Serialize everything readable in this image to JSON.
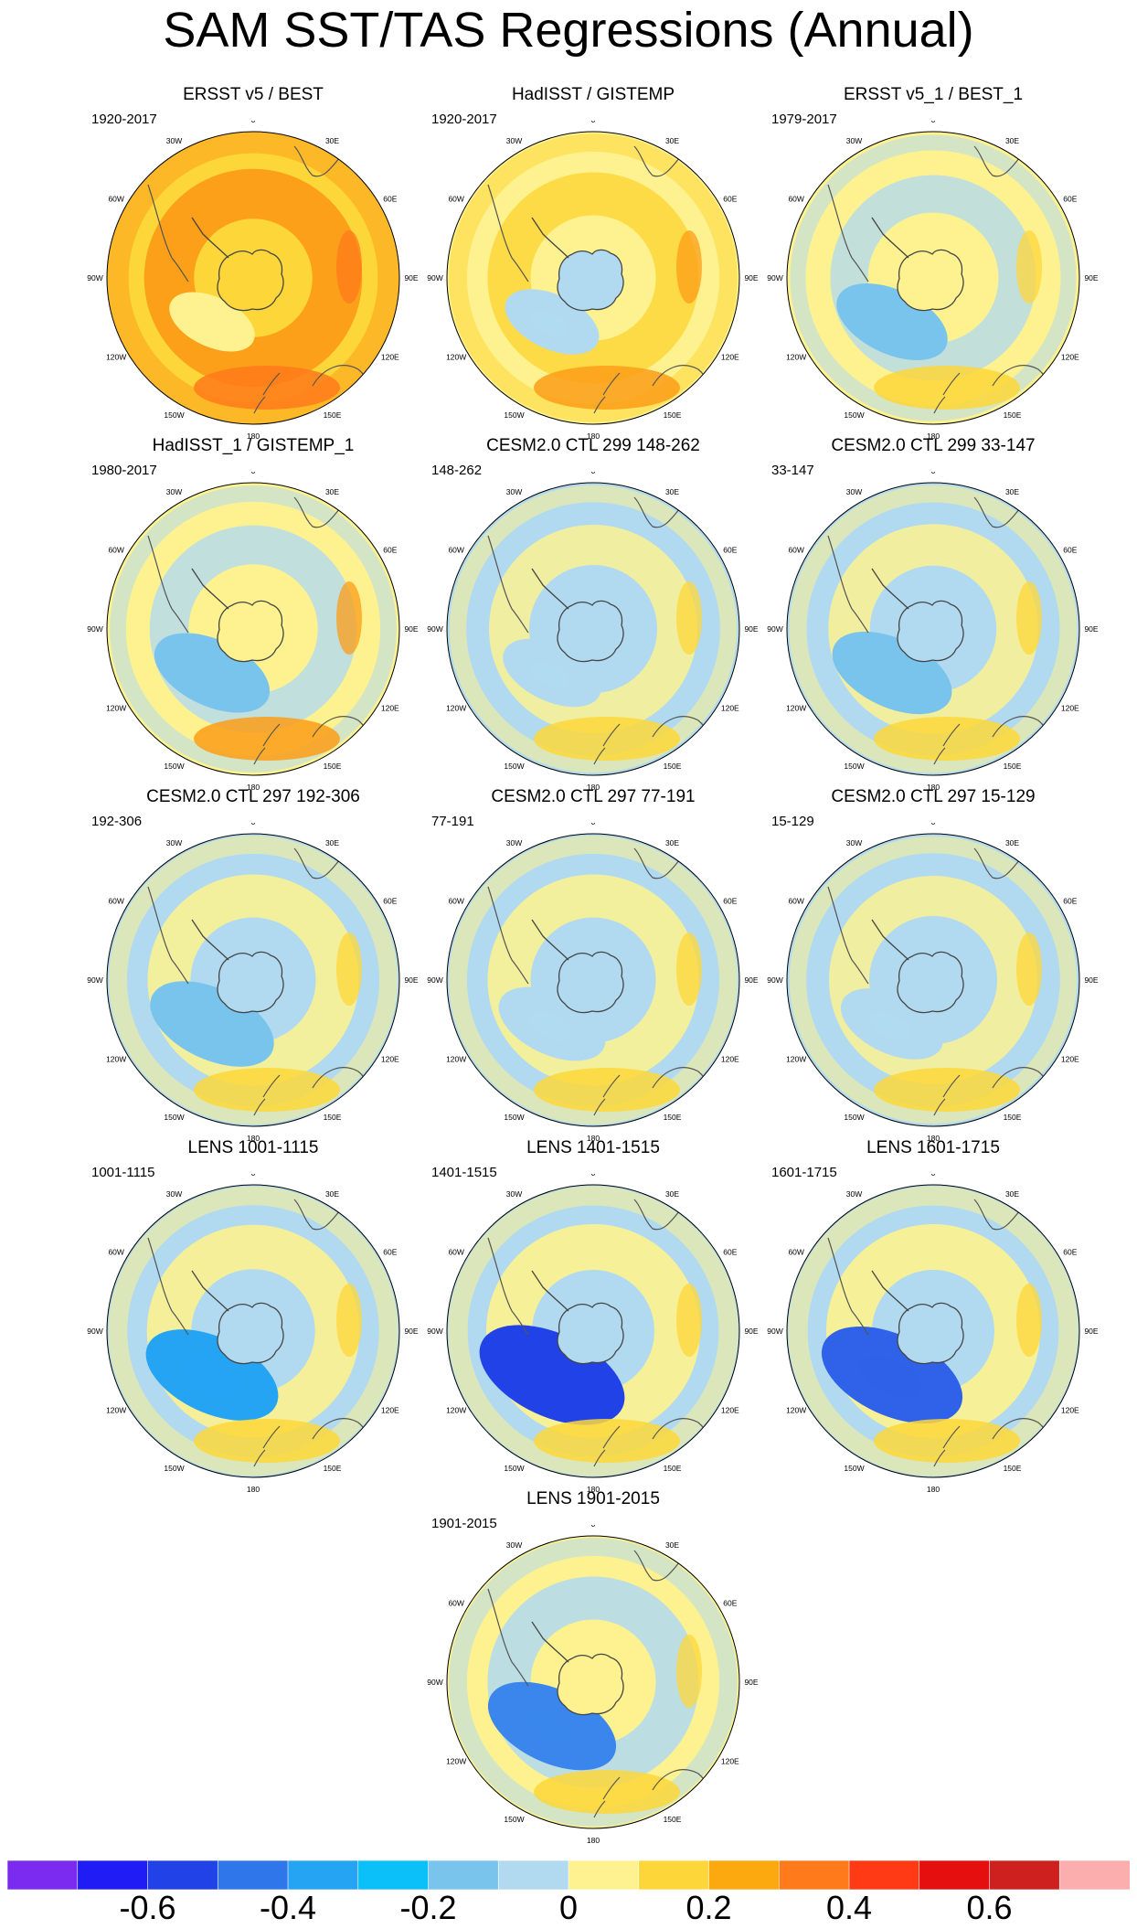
{
  "chart_data": {
    "title": "SAM SST/TAS Regressions (Annual)",
    "type": "polar-map-panels",
    "projection": "south polar stereographic",
    "longitude_labels": [
      "0",
      "30E",
      "60E",
      "90E",
      "120E",
      "150E",
      "180",
      "150W",
      "120W",
      "90W",
      "60W",
      "30W"
    ],
    "panels": [
      {
        "title": "ERSST v5 / BEST",
        "period": "1920-2017",
        "pattern": {
          "base": "#fdd73a",
          "ring": "#fb9e17",
          "ring_strength": 0.95,
          "cold_low": "#fdf28f",
          "warm_patch": "#ff7a1a",
          "dipole": 0.2
        }
      },
      {
        "title": "HadISST / GISTEMP",
        "period": "1920-2017",
        "pattern": {
          "base": "#fdf28f",
          "ring": "#fdd73a",
          "ring_strength": 0.7,
          "cold_low": "#b1daf0",
          "warm_patch": "#fb9e17",
          "dipole": 0.3
        }
      },
      {
        "title": "ERSST v5_1 / BEST_1",
        "period": "1979-2017",
        "pattern": {
          "base": "#fdf28f",
          "ring": "#b1daf0",
          "ring_strength": 0.5,
          "cold_low": "#78c4ec",
          "warm_patch": "#fdd73a",
          "dipole": 0.5
        }
      },
      {
        "title": "HadISST_1 / GISTEMP_1",
        "period": "1980-2017",
        "pattern": {
          "base": "#fdf28f",
          "ring": "#b1daf0",
          "ring_strength": 0.55,
          "cold_low": "#78c4ec",
          "warm_patch": "#fb9e17",
          "dipole": 0.55
        }
      },
      {
        "title": "CESM2.0 CTL 299 148-262",
        "period": "148-262",
        "pattern": {
          "base": "#b1daf0",
          "ring": "#fdf28f",
          "ring_strength": 0.6,
          "cold_low": "#b1daf0",
          "warm_patch": "#fdd73a",
          "dipole": 0.35
        }
      },
      {
        "title": "CESM2.0 CTL 299 33-147",
        "period": "33-147",
        "pattern": {
          "base": "#b1daf0",
          "ring": "#fdf28f",
          "ring_strength": 0.65,
          "cold_low": "#78c4ec",
          "warm_patch": "#fdd73a",
          "dipole": 0.6
        }
      },
      {
        "title": "CESM2.0 CTL 297 192-306",
        "period": "192-306",
        "pattern": {
          "base": "#b1daf0",
          "ring": "#fdf28f",
          "ring_strength": 0.7,
          "cold_low": "#78c4ec",
          "warm_patch": "#fdd73a",
          "dipole": 0.65
        }
      },
      {
        "title": "CESM2.0 CTL 297 77-191",
        "period": "77-191",
        "pattern": {
          "base": "#b1daf0",
          "ring": "#fdf28f",
          "ring_strength": 0.7,
          "cold_low": "#b1daf0",
          "warm_patch": "#fdd73a",
          "dipole": 0.45
        }
      },
      {
        "title": "CESM2.0 CTL 297 15-129",
        "period": "15-129",
        "pattern": {
          "base": "#b1daf0",
          "ring": "#fdf28f",
          "ring_strength": 0.6,
          "cold_low": "#b1daf0",
          "warm_patch": "#fdd73a",
          "dipole": 0.4
        }
      },
      {
        "title": "LENS 1001-1115",
        "period": "1001-1115",
        "pattern": {
          "base": "#b1daf0",
          "ring": "#fdf28f",
          "ring_strength": 0.75,
          "cold_low": "#26a4f4",
          "warm_patch": "#fdd73a",
          "dipole": 0.75
        }
      },
      {
        "title": "LENS 1401-1515",
        "period": "1401-1515",
        "pattern": {
          "base": "#b1daf0",
          "ring": "#fdf28f",
          "ring_strength": 0.8,
          "cold_low": "#2142e6",
          "warm_patch": "#fdd73a",
          "dipole": 0.9
        }
      },
      {
        "title": "LENS 1601-1715",
        "period": "1601-1715",
        "pattern": {
          "base": "#b1daf0",
          "ring": "#fdf28f",
          "ring_strength": 0.8,
          "cold_low": "#2f62e8",
          "warm_patch": "#fdd73a",
          "dipole": 0.85
        }
      },
      {
        "title": "LENS 1901-2015",
        "period": "1901-2015",
        "pattern": {
          "base": "#fdf28f",
          "ring": "#b1daf0",
          "ring_strength": 0.7,
          "cold_low": "#3a86ec",
          "warm_patch": "#fdd73a",
          "dipole": 0.7
        }
      }
    ],
    "colorbar": {
      "colors": [
        "#7b2af0",
        "#1f1cf5",
        "#2142e6",
        "#2f76ea",
        "#26a4f4",
        "#0bbff8",
        "#78c4ec",
        "#b1daf0",
        "#fdf28f",
        "#fdd73a",
        "#fba90f",
        "#ff7a1a",
        "#ff3a14",
        "#e60f0f",
        "#cf2020",
        "#fcaeae"
      ],
      "tick_labels": [
        "-0.6",
        "-0.4",
        "-0.2",
        "0",
        "0.2",
        "0.4",
        "0.6"
      ],
      "tick_values": [
        -0.6,
        -0.4,
        -0.2,
        0,
        0.2,
        0.4,
        0.6
      ],
      "range": [
        -0.8,
        0.8
      ]
    }
  }
}
